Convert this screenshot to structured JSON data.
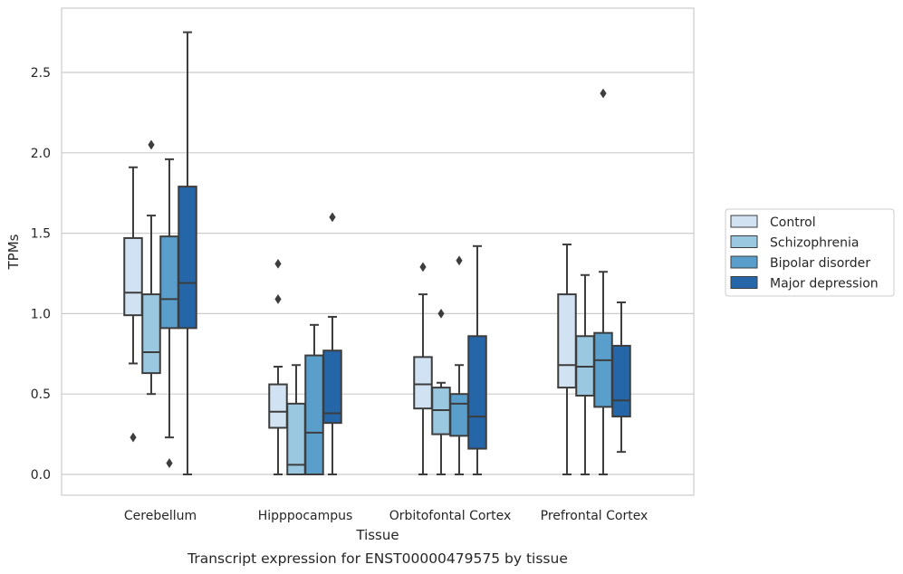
{
  "caption": "Transcript expression for ENST00000479575 by tissue",
  "chart_data": {
    "type": "boxplot",
    "xlabel": "Tissue",
    "ylabel": "TPMs",
    "ylim": [
      -0.13,
      2.88
    ],
    "yticks": [
      0.0,
      0.5,
      1.0,
      1.5,
      2.0,
      2.5
    ],
    "ytick_labels": [
      "0.0",
      "0.5",
      "1.0",
      "1.5",
      "2.0",
      "2.5"
    ],
    "grid": "horizontal",
    "legend_position": "outside-right",
    "categories": [
      "Cerebellum",
      "Hipppocampus",
      "Orbitofontal Cortex",
      "Prefrontal Cortex"
    ],
    "series": [
      {
        "name": "Control",
        "color": "#d1e2f2",
        "boxes": [
          {
            "whislo": 0.69,
            "q1": 0.99,
            "med": 1.13,
            "q3": 1.47,
            "whishi": 1.91,
            "fliers": [
              0.23
            ]
          },
          {
            "whislo": 0.0,
            "q1": 0.29,
            "med": 0.39,
            "q3": 0.56,
            "whishi": 0.67,
            "fliers": [
              1.31,
              1.09
            ]
          },
          {
            "whislo": 0.0,
            "q1": 0.41,
            "med": 0.56,
            "q3": 0.73,
            "whishi": 1.12,
            "fliers": [
              1.29
            ]
          },
          {
            "whislo": 0.0,
            "q1": 0.54,
            "med": 0.68,
            "q3": 1.12,
            "whishi": 1.43,
            "fliers": []
          }
        ]
      },
      {
        "name": "Schizophrenia",
        "color": "#9ac8e0",
        "boxes": [
          {
            "whislo": 0.5,
            "q1": 0.63,
            "med": 0.76,
            "q3": 1.12,
            "whishi": 1.61,
            "fliers": [
              2.05
            ]
          },
          {
            "whislo": 0.0,
            "q1": 0.0,
            "med": 0.06,
            "q3": 0.44,
            "whishi": 0.68,
            "fliers": []
          },
          {
            "whislo": 0.0,
            "q1": 0.25,
            "med": 0.4,
            "q3": 0.54,
            "whishi": 0.57,
            "fliers": [
              1.0
            ]
          },
          {
            "whislo": 0.0,
            "q1": 0.49,
            "med": 0.67,
            "q3": 0.86,
            "whishi": 1.24,
            "fliers": []
          }
        ]
      },
      {
        "name": "Bipolar disorder",
        "color": "#5a9fcc",
        "boxes": [
          {
            "whislo": 0.23,
            "q1": 0.91,
            "med": 1.09,
            "q3": 1.48,
            "whishi": 1.96,
            "fliers": [
              0.07
            ]
          },
          {
            "whislo": 0.0,
            "q1": 0.0,
            "med": 0.26,
            "q3": 0.74,
            "whishi": 0.93,
            "fliers": []
          },
          {
            "whislo": 0.0,
            "q1": 0.24,
            "med": 0.44,
            "q3": 0.5,
            "whishi": 0.68,
            "fliers": [
              1.33
            ]
          },
          {
            "whislo": 0.0,
            "q1": 0.42,
            "med": 0.71,
            "q3": 0.88,
            "whishi": 1.26,
            "fliers": [
              2.37
            ]
          }
        ]
      },
      {
        "name": "Major depression",
        "color": "#2466a8",
        "boxes": [
          {
            "whislo": 0.0,
            "q1": 0.91,
            "med": 1.19,
            "q3": 1.79,
            "whishi": 2.75,
            "fliers": []
          },
          {
            "whislo": 0.0,
            "q1": 0.32,
            "med": 0.38,
            "q3": 0.77,
            "whishi": 0.98,
            "fliers": [
              1.6
            ]
          },
          {
            "whislo": 0.0,
            "q1": 0.16,
            "med": 0.36,
            "q3": 0.86,
            "whishi": 1.42,
            "fliers": []
          },
          {
            "whislo": 0.14,
            "q1": 0.36,
            "med": 0.46,
            "q3": 0.8,
            "whishi": 1.07,
            "fliers": []
          }
        ]
      }
    ]
  }
}
